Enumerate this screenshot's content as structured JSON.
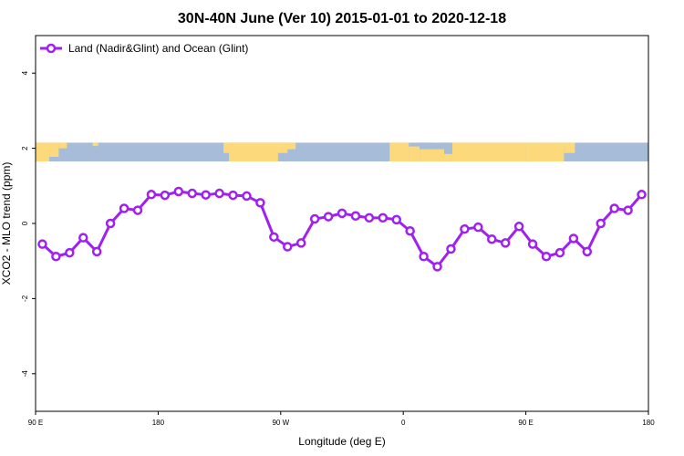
{
  "chart_data": {
    "type": "line",
    "title": "30N-40N June (Ver 10)   2015-01-01 to 2020-12-18",
    "xlabel": "Longitude (deg E)",
    "ylabel": "XCO2 - MLO trend (ppm)",
    "xlim": [
      90,
      540
    ],
    "ylim": [
      -5,
      5
    ],
    "x_ticks": [
      {
        "value": 90,
        "label": "90 E"
      },
      {
        "value": 180,
        "label": "180"
      },
      {
        "value": 270,
        "label": "90 W"
      },
      {
        "value": 360,
        "label": "0"
      },
      {
        "value": 450,
        "label": "90 E"
      },
      {
        "value": 540,
        "label": "180"
      }
    ],
    "y_ticks": [
      {
        "value": -4,
        "label": "-4"
      },
      {
        "value": -2,
        "label": "-2"
      },
      {
        "value": 0,
        "label": "0"
      },
      {
        "value": 2,
        "label": "2"
      },
      {
        "value": 4,
        "label": "4"
      }
    ],
    "legend_position": "top-left",
    "grid": false,
    "series": [
      {
        "name": "Land (Nadir&Glint) and Ocean (Glint)",
        "color": "#a020f0",
        "x": [
          95,
          105,
          115,
          125,
          135,
          145,
          155,
          165,
          175,
          185,
          195,
          205,
          215,
          225,
          235,
          245,
          255,
          265,
          275,
          285,
          295,
          305,
          315,
          325,
          335,
          345,
          355,
          365,
          375,
          385,
          395,
          405,
          415,
          425,
          435,
          445,
          455,
          465,
          475,
          485,
          495,
          505,
          515,
          525,
          535
        ],
        "y": [
          -0.55,
          -0.88,
          -0.78,
          -0.38,
          -0.75,
          0.0,
          0.4,
          0.35,
          0.77,
          0.75,
          0.85,
          0.8,
          0.76,
          0.8,
          0.75,
          0.73,
          0.55,
          -0.36,
          -0.62,
          -0.52,
          0.12,
          0.18,
          0.27,
          0.2,
          0.15,
          0.15,
          0.1,
          -0.2,
          -0.88,
          -1.15,
          -0.68,
          -0.15,
          -0.1,
          -0.42,
          -0.52,
          -0.08,
          -0.55,
          -0.88,
          -0.78,
          -0.4,
          -0.75,
          0.0,
          0.4,
          0.35,
          0.77
        ]
      }
    ],
    "map_strip": {
      "y_range": [
        1.65,
        2.15
      ],
      "ocean_color": "#a6bcd8",
      "land_color": "#fcd97a"
    }
  }
}
